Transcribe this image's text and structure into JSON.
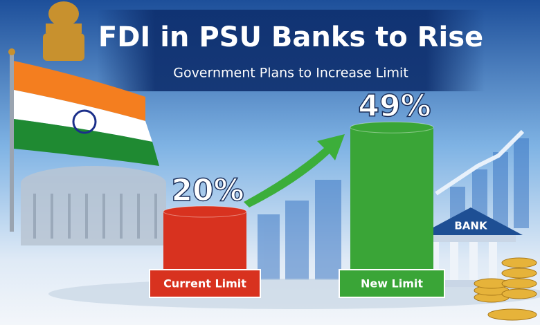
{
  "chart_data": {
    "type": "bar",
    "title": "FDI in PSU Banks to Rise",
    "subtitle": "Government Plans to Increase Limit",
    "categories": [
      "Current Limit",
      "New Limit"
    ],
    "values": [
      20,
      49
    ],
    "value_labels": [
      "20%",
      "49%"
    ],
    "colors": [
      "#d8321f",
      "#3aa537"
    ],
    "bank_sign": "BANK"
  }
}
